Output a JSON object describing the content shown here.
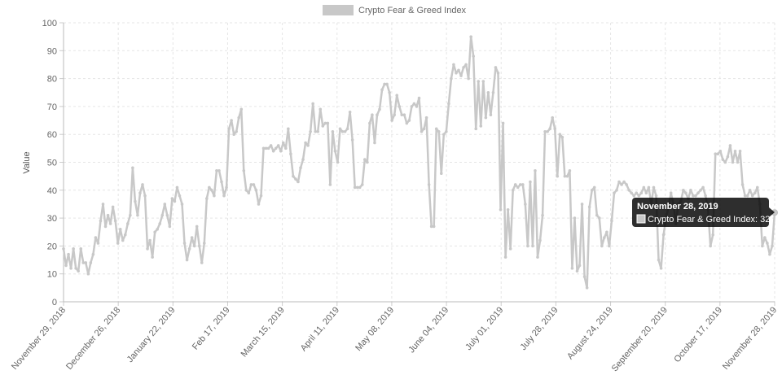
{
  "chart_data": {
    "type": "line",
    "title": "",
    "xlabel": "",
    "ylabel": "Value",
    "ylim": [
      0,
      100
    ],
    "yticks": [
      0,
      10,
      20,
      30,
      40,
      50,
      60,
      70,
      80,
      90,
      100
    ],
    "grid": true,
    "legend_position": "top-center",
    "x_start": "2018-11-29",
    "x_end": "2019-11-28",
    "x_tick_labels": [
      "November 29, 2018",
      "December 26, 2018",
      "January 22, 2019",
      "Feb 17, 2019",
      "March 15, 2019",
      "April 11, 2019",
      "May 08, 2019",
      "June 04, 2019",
      "July 01, 2019",
      "July 28, 2019",
      "August 24, 2019",
      "September 20, 2019",
      "October 17, 2019",
      "November 28, 2019"
    ],
    "series": [
      {
        "name": "Crypto Fear & Greed Index",
        "color": "#c8c8c8",
        "values": [
          19,
          13,
          17,
          12,
          19,
          12,
          11,
          19,
          14,
          14,
          10,
          14,
          17,
          23,
          21,
          29,
          35,
          27,
          31,
          28,
          34,
          29,
          21,
          26,
          22,
          24,
          28,
          31,
          48,
          36,
          31,
          39,
          42,
          38,
          19,
          22,
          16,
          25,
          26,
          28,
          31,
          35,
          31,
          27,
          37,
          36,
          41,
          38,
          35,
          21,
          15,
          19,
          23,
          20,
          27,
          20,
          14,
          21,
          37,
          41,
          40,
          38,
          47,
          47,
          43,
          38,
          41,
          62,
          65,
          60,
          61,
          66,
          69,
          47,
          40,
          39,
          42,
          42,
          40,
          35,
          38,
          55,
          55,
          55,
          56,
          54,
          55,
          56,
          54,
          57,
          55,
          62,
          53,
          45,
          44,
          43,
          48,
          51,
          57,
          56,
          61,
          71,
          61,
          61,
          69,
          63,
          64,
          64,
          42,
          61,
          54,
          50,
          62,
          61,
          61,
          62,
          68,
          58,
          41,
          41,
          41,
          42,
          51,
          50,
          64,
          67,
          57,
          67,
          69,
          76,
          78,
          78,
          75,
          65,
          67,
          74,
          70,
          67,
          67,
          64,
          65,
          70,
          71,
          70,
          73,
          61,
          62,
          66,
          42,
          27,
          27,
          62,
          61,
          46,
          60,
          61,
          71,
          80,
          85,
          82,
          83,
          81,
          84,
          85,
          80,
          95,
          88,
          62,
          79,
          63,
          79,
          66,
          75,
          67,
          75,
          84,
          82,
          33,
          64,
          16,
          33,
          19,
          40,
          42,
          41,
          42,
          42,
          35,
          20,
          43,
          20,
          47,
          16,
          22,
          31,
          61,
          61,
          62,
          66,
          62,
          45,
          60,
          59,
          45,
          45,
          47,
          12,
          30,
          11,
          13,
          35,
          9,
          5,
          34,
          40,
          41,
          31,
          30,
          20,
          23,
          25,
          20,
          29,
          39,
          40,
          43,
          42,
          43,
          42,
          40,
          39,
          38,
          39,
          38,
          39,
          41,
          39,
          41,
          35,
          41,
          38,
          15,
          12,
          24,
          30,
          34,
          39,
          35,
          28,
          35,
          36,
          40,
          39,
          37,
          40,
          38,
          38,
          39,
          40,
          41,
          38,
          33,
          20,
          24,
          53,
          53,
          54,
          51,
          50,
          52,
          56,
          50,
          54,
          50,
          54,
          42,
          38,
          38,
          40,
          38,
          39,
          41,
          35,
          20,
          23,
          21,
          17,
          20,
          32
        ]
      }
    ],
    "tooltip": {
      "title": "November 28, 2019",
      "label": "Crypto Fear & Greed Index: 32",
      "x_index": 288
    }
  }
}
